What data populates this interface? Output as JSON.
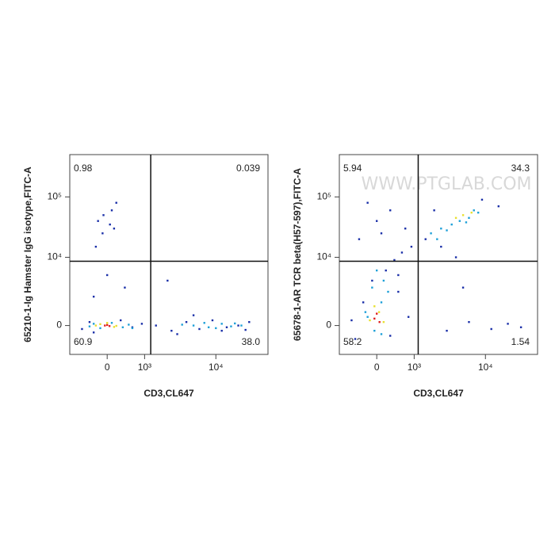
{
  "chart_data": [
    {
      "type": "scatter",
      "xscale": "arcsinh",
      "xcofactor": 700,
      "yscale": "arcsinh",
      "ycofactor": 1500,
      "xlabel": "CD3,CL647",
      "ylabel": "65210-1-Ig Hamster IgG isotype,FITC-A",
      "xlim": [
        -1000,
        50000
      ],
      "ylim": [
        -2000,
        500000
      ],
      "xticks": [
        0,
        {
          "value": 1000,
          "label": "10³"
        },
        {
          "value": 10000,
          "label": "10⁴"
        }
      ],
      "yticks": [
        0,
        {
          "value": 10000,
          "label": "10⁴"
        },
        {
          "value": 100000,
          "label": "10⁵"
        }
      ],
      "gates": {
        "x": 1250,
        "y": 8600
      },
      "quadrants": {
        "positions": [
          "upper-left",
          "upper-right",
          "lower-left",
          "lower-right"
        ],
        "values": [
          0.98,
          0.039,
          60.9,
          38.0
        ],
        "value_labels": [
          "0.98",
          "0.039",
          "60.9",
          "38.0"
        ]
      },
      "series": [
        {
          "color": "#1a2fa8",
          "x": [
            -600,
            -400,
            -300,
            300,
            600,
            900,
            1500,
            2500,
            4000,
            6000,
            9000,
            14000,
            20000,
            28000,
            -200,
            100,
            -100,
            200,
            0,
            -300,
            400,
            -250,
            150,
            3000,
            5000,
            -80,
            60,
            2200,
            12000,
            25000
          ],
          "y": [
            -200,
            200,
            -400,
            300,
            -100,
            100,
            0,
            -300,
            200,
            -200,
            300,
            -100,
            0,
            200,
            40000,
            60000,
            25000,
            80000,
            5000,
            2000,
            3000,
            15000,
            30000,
            -500,
            600,
            50000,
            35000,
            4000,
            -300,
            -250
          ]
        },
        {
          "color": "#1ea0d8",
          "x": [
            -300,
            -150,
            100,
            350,
            500,
            5000,
            8000,
            12000,
            16000,
            22000,
            7000,
            10000,
            -400,
            600,
            18000,
            3500
          ],
          "y": [
            100,
            -150,
            150,
            -100,
            50,
            0,
            -100,
            100,
            -50,
            0,
            150,
            -150,
            -50,
            -150,
            120,
            50
          ]
        },
        {
          "color": "#e8e030",
          "x": [
            -150,
            150,
            0,
            200,
            -250
          ],
          "y": [
            80,
            -80,
            150,
            -20,
            0
          ]
        },
        {
          "color": "#e02020",
          "x": [
            -50,
            0,
            50
          ],
          "y": [
            0,
            30,
            -30
          ]
        }
      ]
    },
    {
      "type": "scatter",
      "xscale": "arcsinh",
      "xcofactor": 700,
      "yscale": "arcsinh",
      "ycofactor": 1500,
      "xlabel": "CD3,CL647",
      "ylabel": "65678-1-AR TCR beta(H57-597),FITC-A",
      "watermark": "WWW.PTGLAB.COM",
      "xlim": [
        -1000,
        50000
      ],
      "ylim": [
        -2000,
        500000
      ],
      "xticks": [
        0,
        {
          "value": 1000,
          "label": "10³"
        },
        {
          "value": 10000,
          "label": "10⁴"
        }
      ],
      "yticks": [
        0,
        {
          "value": 10000,
          "label": "10⁴"
        },
        {
          "value": 100000,
          "label": "10⁵"
        }
      ],
      "gates": {
        "x": 1160,
        "y": 8600
      },
      "quadrants": {
        "positions": [
          "upper-left",
          "upper-right",
          "lower-left",
          "lower-right"
        ],
        "values": [
          5.94,
          34.3,
          58.2,
          1.54
        ],
        "value_labels": [
          "5.94",
          "34.3",
          "58.2",
          "1.54"
        ]
      },
      "series": [
        {
          "color": "#1a2fa8",
          "x": [
            -500,
            -300,
            300,
            500,
            800,
            -600,
            -100,
            200,
            400,
            600,
            -400,
            0,
            300,
            700,
            900,
            3000,
            6000,
            12000,
            20000,
            30000,
            5000,
            2500,
            -200,
            100,
            500,
            1500,
            2000,
            9000,
            15000,
            4000
          ],
          "y": [
            -800,
            1500,
            -600,
            2500,
            500,
            300,
            4000,
            6000,
            9000,
            12000,
            20000,
            40000,
            60000,
            30000,
            15000,
            -300,
            200,
            -200,
            100,
            -100,
            3000,
            15000,
            80000,
            25000,
            5000,
            20000,
            60000,
            90000,
            70000,
            10000
          ]
        },
        {
          "color": "#1ea0d8",
          "x": [
            -200,
            100,
            250,
            -100,
            0,
            150,
            -250,
            1800,
            2500,
            3500,
            4500,
            6000,
            8000,
            2200,
            3000,
            5500,
            7000,
            -50,
            100
          ],
          "y": [
            500,
            1500,
            2500,
            3000,
            6000,
            4000,
            800,
            25000,
            30000,
            35000,
            40000,
            45000,
            55000,
            20000,
            28000,
            38000,
            60000,
            -300,
            -500
          ]
        },
        {
          "color": "#e8e030",
          "x": [
            -150,
            50,
            150,
            -50,
            5000,
            6500,
            4000
          ],
          "y": [
            300,
            800,
            200,
            1200,
            50000,
            55000,
            45000
          ]
        },
        {
          "color": "#e02020",
          "x": [
            -50,
            0,
            60
          ],
          "y": [
            400,
            700,
            200
          ]
        }
      ]
    }
  ]
}
